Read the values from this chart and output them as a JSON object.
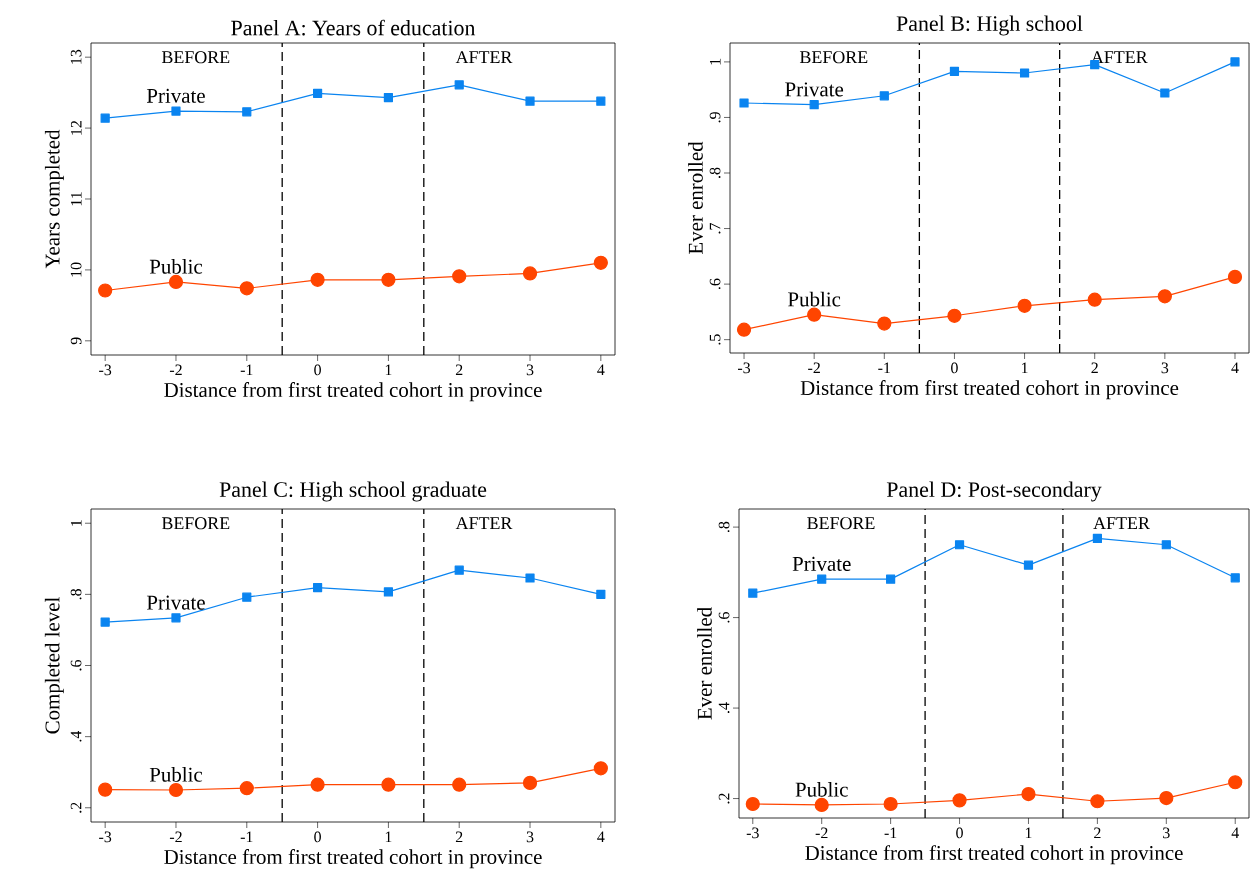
{
  "chart_data": [
    {
      "type": "line",
      "title": "Panel A: Years of education",
      "xlabel": "Distance from first treated cohort in province",
      "ylabel": "Years completed",
      "x": [
        -3,
        -2,
        -1,
        0,
        1,
        2,
        3,
        4
      ],
      "xlim": [
        -3.2,
        4.2
      ],
      "xticks": [
        -3,
        -2,
        -1,
        0,
        1,
        2,
        3,
        4
      ],
      "ylim": [
        8.8,
        13.2
      ],
      "yticks": [
        9,
        10,
        11,
        12,
        13
      ],
      "line_style": "solid",
      "series": [
        {
          "name": "Private",
          "color": "#0a84f0",
          "marker": "square",
          "values": [
            12.14,
            12.24,
            12.23,
            12.49,
            12.43,
            12.61,
            12.38,
            12.38
          ]
        },
        {
          "name": "Public",
          "color": "#ff4500",
          "marker": "circle",
          "values": [
            9.71,
            9.83,
            9.74,
            9.86,
            9.86,
            9.91,
            9.95,
            10.1
          ]
        }
      ],
      "ref_lines": [
        {
          "axis": "x",
          "value": -0.5,
          "color": "#000000",
          "line_style": "dashed"
        },
        {
          "axis": "x",
          "value": 1.5,
          "color": "#000000",
          "line_style": "dashed"
        }
      ],
      "annotations": [
        "BEFORE",
        "AFTER"
      ]
    },
    {
      "type": "line",
      "title": "Panel B: High school",
      "xlabel": "Distance from first treated cohort in province",
      "ylabel": "Ever enrolled",
      "x": [
        -3,
        -2,
        -1,
        0,
        1,
        2,
        3,
        4
      ],
      "xlim": [
        -3.2,
        4.2
      ],
      "xticks": [
        -3,
        -2,
        -1,
        0,
        1,
        2,
        3,
        4
      ],
      "ylim": [
        0.476,
        1.034
      ],
      "yticks": [
        {
          "value": 0.5,
          "label": ".5"
        },
        {
          "value": 0.6,
          "label": ".6"
        },
        {
          "value": 0.7,
          "label": ".7"
        },
        {
          "value": 0.8,
          "label": ".8"
        },
        {
          "value": 0.9,
          "label": ".9"
        },
        1
      ],
      "line_style": "solid",
      "series": [
        {
          "name": "Private",
          "color": "#0a84f0",
          "marker": "square",
          "values": [
            0.926,
            0.923,
            0.939,
            0.983,
            0.98,
            0.995,
            0.944,
            1.0
          ]
        },
        {
          "name": "Public",
          "color": "#ff4500",
          "marker": "circle",
          "values": [
            0.518,
            0.545,
            0.529,
            0.543,
            0.561,
            0.572,
            0.578,
            0.613
          ]
        }
      ],
      "ref_lines": [
        {
          "axis": "x",
          "value": -0.5,
          "color": "#000000",
          "line_style": "dashed"
        },
        {
          "axis": "x",
          "value": 1.5,
          "color": "#000000",
          "line_style": "dashed"
        }
      ],
      "annotations": [
        "BEFORE",
        "AFTER"
      ]
    },
    {
      "type": "line",
      "title": "Panel C: High school graduate",
      "xlabel": "Distance from first treated cohort in province",
      "ylabel": "Completed level",
      "x": [
        -3,
        -2,
        -1,
        0,
        1,
        2,
        3,
        4
      ],
      "xlim": [
        -3.2,
        4.2
      ],
      "xticks": [
        -3,
        -2,
        -1,
        0,
        1,
        2,
        3,
        4
      ],
      "ylim": [
        0.16,
        1.04
      ],
      "yticks": [
        {
          "value": 0.2,
          "label": ".2"
        },
        {
          "value": 0.4,
          "label": ".4"
        },
        {
          "value": 0.6,
          "label": ".6"
        },
        {
          "value": 0.8,
          "label": ".8"
        },
        1
      ],
      "line_style": "solid",
      "series": [
        {
          "name": "Private",
          "color": "#0a84f0",
          "marker": "square",
          "values": [
            0.722,
            0.734,
            0.792,
            0.819,
            0.807,
            0.868,
            0.846,
            0.8
          ]
        },
        {
          "name": "Public",
          "color": "#ff4500",
          "marker": "circle",
          "values": [
            0.251,
            0.25,
            0.255,
            0.265,
            0.265,
            0.265,
            0.27,
            0.311
          ]
        }
      ],
      "ref_lines": [
        {
          "axis": "x",
          "value": -0.5,
          "color": "#000000",
          "line_style": "dashed"
        },
        {
          "axis": "x",
          "value": 1.5,
          "color": "#000000",
          "line_style": "dashed"
        }
      ],
      "annotations": [
        "BEFORE",
        "AFTER"
      ]
    },
    {
      "type": "line",
      "title": "Panel D: Post-secondary",
      "xlabel": "Distance from first treated cohort in province",
      "ylabel": "Ever enrolled",
      "x": [
        -3,
        -2,
        -1,
        0,
        1,
        2,
        3,
        4
      ],
      "xlim": [
        -3.2,
        4.2
      ],
      "xticks": [
        -3,
        -2,
        -1,
        0,
        1,
        2,
        3,
        4
      ],
      "ylim": [
        0.157,
        0.84
      ],
      "yticks": [
        {
          "value": 0.2,
          "label": ".2"
        },
        {
          "value": 0.4,
          "label": ".4"
        },
        {
          "value": 0.6,
          "label": ".6"
        },
        {
          "value": 0.8,
          "label": ".8"
        }
      ],
      "line_style": "solid",
      "series": [
        {
          "name": "Private",
          "color": "#0a84f0",
          "marker": "square",
          "values": [
            0.654,
            0.685,
            0.685,
            0.761,
            0.716,
            0.775,
            0.761,
            0.688
          ]
        },
        {
          "name": "Public",
          "color": "#ff4500",
          "marker": "circle",
          "values": [
            0.188,
            0.186,
            0.188,
            0.196,
            0.21,
            0.194,
            0.201,
            0.236
          ]
        }
      ],
      "ref_lines": [
        {
          "axis": "x",
          "value": -0.5,
          "color": "#000000",
          "line_style": "dashed"
        },
        {
          "axis": "x",
          "value": 1.5,
          "color": "#000000",
          "line_style": "dashed"
        }
      ],
      "annotations": [
        "BEFORE",
        "AFTER"
      ]
    }
  ]
}
